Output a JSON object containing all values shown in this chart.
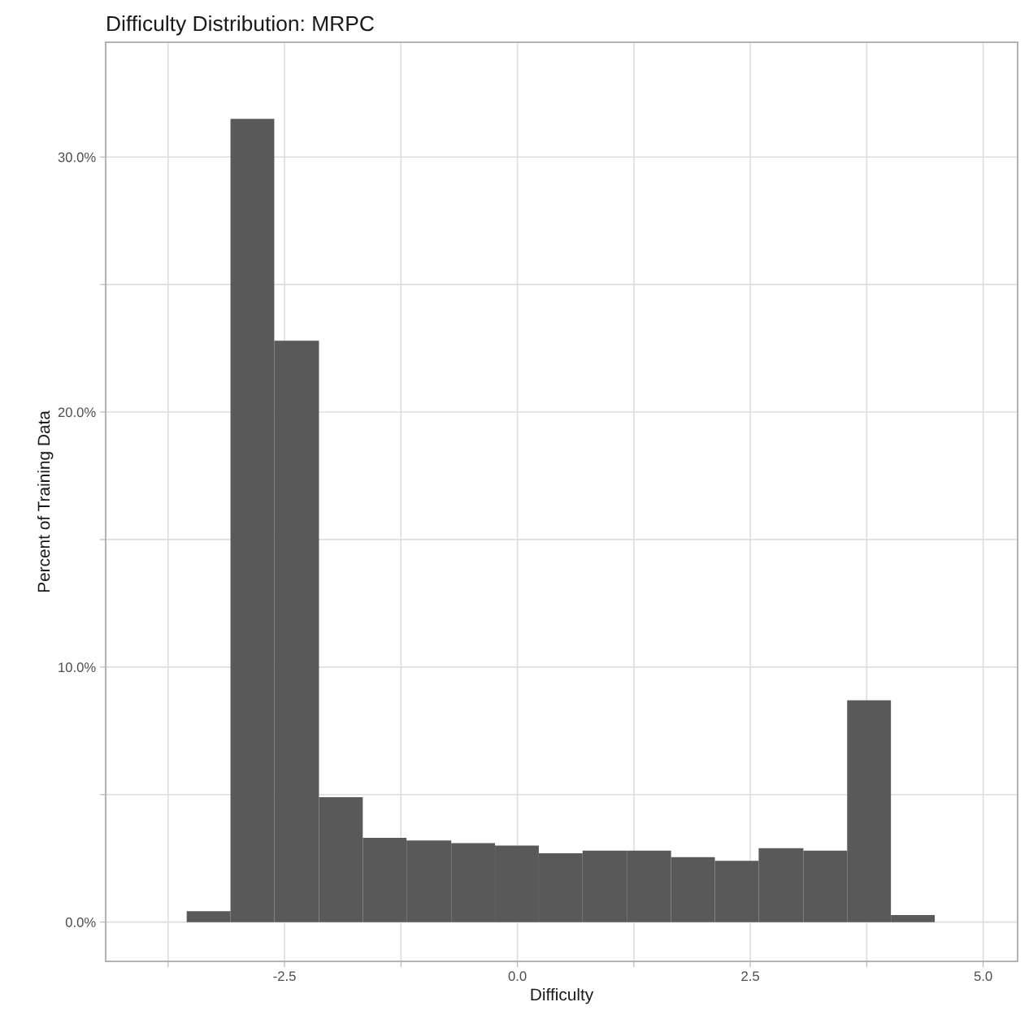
{
  "chart_data": {
    "type": "histogram",
    "title": "Difficulty Distribution: MRPC",
    "xlabel": "Difficulty",
    "ylabel": "Percent of Training Data",
    "bins": [
      -3.55,
      -3.08,
      -2.61,
      -2.13,
      -1.66,
      -1.19,
      -0.71,
      -0.24,
      0.23,
      0.7,
      1.18,
      1.65,
      2.12,
      2.59,
      3.07,
      3.54,
      4.01,
      4.48
    ],
    "values": [
      0.43,
      31.5,
      22.8,
      4.9,
      3.3,
      3.2,
      3.1,
      3.0,
      2.7,
      2.8,
      2.8,
      2.55,
      2.4,
      2.9,
      2.8,
      8.7,
      0.28
    ],
    "color": "#595959",
    "xlim": [
      -4.42,
      5.37
    ],
    "ylim": [
      -1.54,
      34.5
    ],
    "xticks": [
      {
        "value": -3.75,
        "label": null
      },
      {
        "value": -2.5,
        "label": "-2.5"
      },
      {
        "value": -1.25,
        "label": null
      },
      {
        "value": 0,
        "label": "0.0"
      },
      {
        "value": 1.25,
        "label": null
      },
      {
        "value": 2.5,
        "label": "2.5"
      },
      {
        "value": 3.75,
        "label": null
      },
      {
        "value": 5,
        "label": "5.0"
      }
    ],
    "yticks": [
      {
        "value": 0,
        "label": "0.0%"
      },
      {
        "value": 5,
        "label": null
      },
      {
        "value": 10,
        "label": "10.0%"
      },
      {
        "value": 15,
        "label": null
      },
      {
        "value": 20,
        "label": "20.0%"
      },
      {
        "value": 25,
        "label": null
      },
      {
        "value": 30,
        "label": "30.0%"
      }
    ],
    "grid": true
  }
}
